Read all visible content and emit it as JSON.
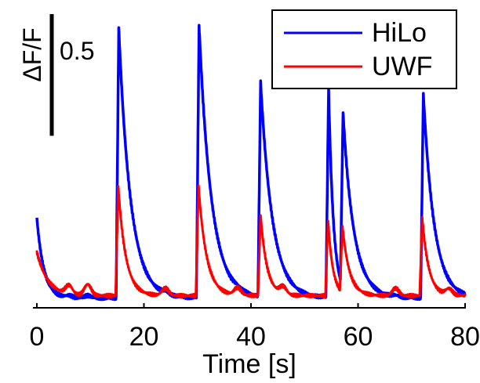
{
  "chart_data": {
    "type": "line",
    "xlabel": "Time [s]",
    "ylabel": "",
    "xlim": [
      0,
      80
    ],
    "ylim": [
      0,
      1.2
    ],
    "x_ticks": [
      "0",
      "20",
      "40",
      "60",
      "80"
    ],
    "grid": false,
    "legend_position": "top-right",
    "scale_bar": {
      "label_text": "ΔF/F",
      "value_text": "0.5",
      "value": 0.5
    },
    "series": [
      {
        "name": "HiLo",
        "color": "#0000ff",
        "baseline": 0.04,
        "initial": {
          "amp": 0.33,
          "tau": 1.3
        },
        "peaks": [
          {
            "t": 15.3,
            "amp": 1.11,
            "tau": 2.2
          },
          {
            "t": 30.3,
            "amp": 1.12,
            "tau": 2.3
          },
          {
            "t": 41.8,
            "amp": 0.88,
            "tau": 2.2
          },
          {
            "t": 54.5,
            "amp": 0.86,
            "tau": 0.9
          },
          {
            "t": 57.2,
            "amp": 0.72,
            "tau": 2.1
          },
          {
            "t": 72.2,
            "amp": 0.84,
            "tau": 2.0
          }
        ],
        "bumps": [
          {
            "t": 6.0,
            "amp": 0.008
          },
          {
            "t": 9.5,
            "amp": 0.01
          },
          {
            "t": 24.0,
            "amp": 0.008
          },
          {
            "t": 37.5,
            "amp": 0.006
          },
          {
            "t": 67.0,
            "amp": 0.006
          }
        ]
      },
      {
        "name": "UWF",
        "color": "#ff0000",
        "baseline": 0.05,
        "initial": {
          "amp": 0.18,
          "tau": 2.0
        },
        "peaks": [
          {
            "t": 15.2,
            "amp": 0.45,
            "tau": 1.4
          },
          {
            "t": 30.2,
            "amp": 0.45,
            "tau": 1.5
          },
          {
            "t": 41.8,
            "amp": 0.33,
            "tau": 1.2
          },
          {
            "t": 54.4,
            "amp": 0.31,
            "tau": 0.9
          },
          {
            "t": 57.1,
            "amp": 0.27,
            "tau": 1.3
          },
          {
            "t": 72.0,
            "amp": 0.32,
            "tau": 1.2
          }
        ],
        "bumps": [
          {
            "t": 6.0,
            "amp": 0.035
          },
          {
            "t": 9.5,
            "amp": 0.045
          },
          {
            "t": 24.0,
            "amp": 0.03
          },
          {
            "t": 37.5,
            "amp": 0.03
          },
          {
            "t": 46.0,
            "amp": 0.03
          },
          {
            "t": 67.0,
            "amp": 0.03
          },
          {
            "t": 77.0,
            "amp": 0.025
          }
        ]
      }
    ]
  }
}
